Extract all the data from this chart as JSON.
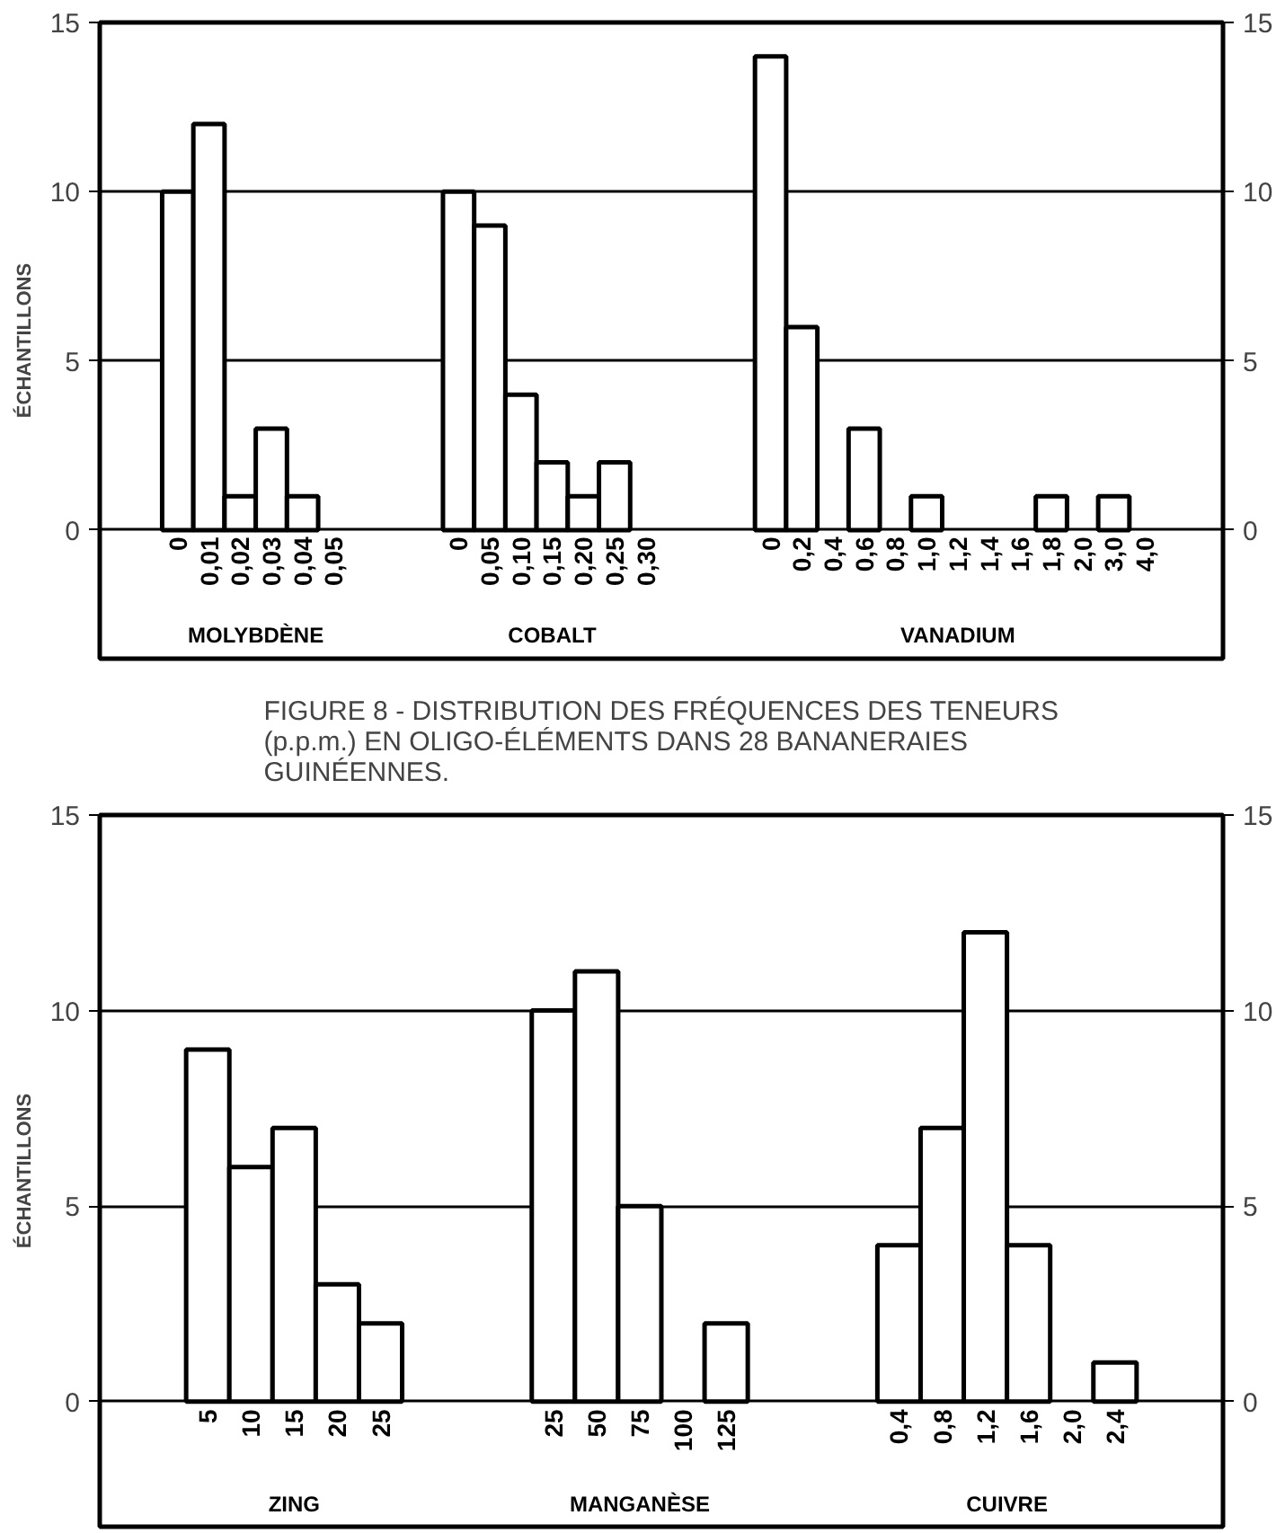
{
  "chart_data": [
    {
      "type": "bar",
      "ylabel": "ÉCHANTILLONS",
      "categories": [
        "0",
        "0,01",
        "0,02",
        "0,03",
        "0,04",
        "0,05",
        null,
        null,
        null,
        "0",
        "0,05",
        "0,10",
        "0,15",
        "0,20",
        "0,25",
        "0,30",
        null,
        null,
        null,
        "0",
        "0,2",
        "0,4",
        "0,6",
        "0,8",
        "1,0",
        "1,2",
        "1,4",
        "1,6",
        "1,8",
        "2,0",
        "3,0",
        "4,0"
      ],
      "values": [
        10,
        12,
        1,
        3,
        1,
        null,
        null,
        null,
        null,
        10,
        9,
        4,
        2,
        1,
        2,
        null,
        null,
        null,
        null,
        14,
        6,
        null,
        3,
        null,
        1,
        null,
        null,
        null,
        1,
        null,
        1,
        null
      ],
      "color": "#ffffff",
      "ylim": [
        -3.8,
        15
      ],
      "yticks": [
        0,
        5,
        10,
        15
      ],
      "y2lim": [
        -3.8,
        15
      ],
      "y2ticks": [
        0,
        5,
        10,
        15
      ],
      "grid": "y",
      "annotations": [
        "MOLYBDÈNE",
        "COBALT",
        "VANADIUM"
      ]
    },
    {
      "type": "bar",
      "title": "FIGURE 8 - DISTRIBUTION DES FRÉQUENCES DES TENEURS (p.p.m.) EN OLIGO-ÉLÉMENTS DANS 28 BANANERAIES GUINÉENNES.",
      "ylabel": "ÉCHANTILLONS",
      "categories": [
        "5",
        "10",
        "15",
        "20",
        "25",
        null,
        null,
        null,
        "25",
        "50",
        "75",
        "100",
        "125",
        null,
        null,
        null,
        "0,4",
        "0,8",
        "1,2",
        "1,6",
        "2,0",
        "2,4"
      ],
      "values": [
        9,
        6,
        7,
        3,
        2,
        null,
        null,
        null,
        10,
        11,
        5,
        null,
        2,
        null,
        null,
        null,
        4,
        7,
        12,
        4,
        null,
        1
      ],
      "color": "#ffffff",
      "ylim": [
        -3.2,
        15
      ],
      "yticks": [
        0,
        5,
        10,
        15
      ],
      "y2lim": [
        -3.2,
        15
      ],
      "y2ticks": [
        0,
        5,
        10,
        15
      ],
      "grid": "y",
      "annotations": [
        "ZING",
        "MANGANÈSE",
        "CUIVRE"
      ]
    }
  ]
}
